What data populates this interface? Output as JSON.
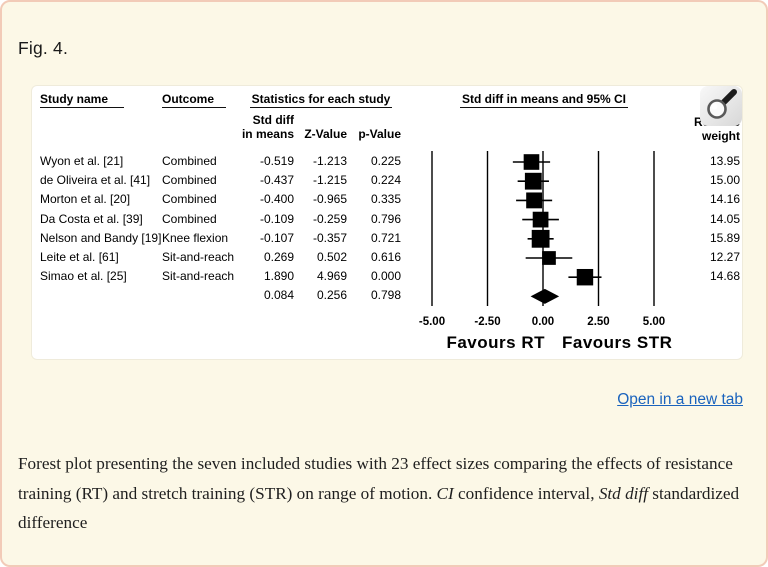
{
  "page": {
    "fig_label": "Fig. 4.",
    "open_link": "Open in a new tab",
    "caption": {
      "part1": "Forest plot presenting the seven included studies with 23 effect sizes comparing the effects of resistance training (RT) and stretch training (STR) on range of motion. ",
      "ci_italic": "CI",
      "part2": " confidence interval, ",
      "stddiff_italic": "Std diff",
      "part3": " standardized difference"
    },
    "colors": {
      "background": "#fcf8e7",
      "border": "#f2cbb8",
      "panel": "#ffffff",
      "link": "#1a63bd",
      "ink": "#000000"
    }
  },
  "figure": {
    "columns": {
      "study": "Study name",
      "outcome": "Outcome",
      "stats_group": "Statistics for each study",
      "plot_group": "Std diff in means and 95% CI",
      "sub_std_diff_line1": "Std diff",
      "sub_std_diff_line2": "in means",
      "sub_z": "Z-Value",
      "sub_p": "p-Value",
      "weight_line1": "Relative",
      "weight_line2": "weight"
    },
    "rows": [
      {
        "study": "Wyon et al. [21]",
        "outcome": "Combined",
        "est": "-0.519",
        "z": "-1.213",
        "p": "0.225",
        "weight": "13.95"
      },
      {
        "study": "de Oliveira et al. [41]",
        "outcome": "Combined",
        "est": "-0.437",
        "z": "-1.215",
        "p": "0.224",
        "weight": "15.00"
      },
      {
        "study": "Morton et al. [20]",
        "outcome": "Combined",
        "est": "-0.400",
        "z": "-0.965",
        "p": "0.335",
        "weight": "14.16"
      },
      {
        "study": "Da Costa et al. [39]",
        "outcome": "Combined",
        "est": "-0.109",
        "z": "-0.259",
        "p": "0.796",
        "weight": "14.05"
      },
      {
        "study": "Nelson and Bandy [19]",
        "outcome": "Knee flexion",
        "est": "-0.107",
        "z": "-0.357",
        "p": "0.721",
        "weight": "15.89"
      },
      {
        "study": "Leite et al. [61]",
        "outcome": "Sit-and-reach",
        "est": "0.269",
        "z": "0.502",
        "p": "0.616",
        "weight": "12.27"
      },
      {
        "study": "Simao et al. [25]",
        "outcome": "Sit-and-reach",
        "est": "1.890",
        "z": "4.969",
        "p": "0.000",
        "weight": "14.68"
      }
    ],
    "summary_row": {
      "study": "",
      "outcome": "",
      "est": "0.084",
      "z": "0.256",
      "p": "0.798",
      "weight": ""
    }
  },
  "chart_data": {
    "type": "forest",
    "title": "Std diff in means and 95% CI",
    "x_ticks": [
      -5,
      -2.5,
      0,
      2.5,
      5
    ],
    "x_tick_labels": [
      "-5.00",
      "-2.50",
      "0.00",
      "2.50",
      "5.00"
    ],
    "xlim": [
      -5,
      5
    ],
    "favours_left": "Favours RT",
    "favours_right": "Favours STR",
    "studies": [
      {
        "name": "Wyon et al. [21]",
        "est": -0.519,
        "ci_low": -1.358,
        "ci_high": 0.32,
        "weight": 13.95
      },
      {
        "name": "de Oliveira et al. [41]",
        "est": -0.437,
        "ci_low": -1.142,
        "ci_high": 0.268,
        "weight": 15.0
      },
      {
        "name": "Morton et al. [20]",
        "est": -0.4,
        "ci_low": -1.212,
        "ci_high": 0.412,
        "weight": 14.16
      },
      {
        "name": "Da Costa et al. [39]",
        "est": -0.109,
        "ci_low": -0.934,
        "ci_high": 0.716,
        "weight": 14.05
      },
      {
        "name": "Nelson and Bandy [19]",
        "est": -0.107,
        "ci_low": -0.694,
        "ci_high": 0.48,
        "weight": 15.89
      },
      {
        "name": "Leite et al. [61]",
        "est": 0.269,
        "ci_low": -0.781,
        "ci_high": 1.319,
        "weight": 12.27
      },
      {
        "name": "Simao et al. [25]",
        "est": 1.89,
        "ci_low": 1.145,
        "ci_high": 2.635,
        "weight": 14.68
      }
    ],
    "summary": {
      "est": 0.084,
      "ci_low": -0.559,
      "ci_high": 0.727
    }
  }
}
